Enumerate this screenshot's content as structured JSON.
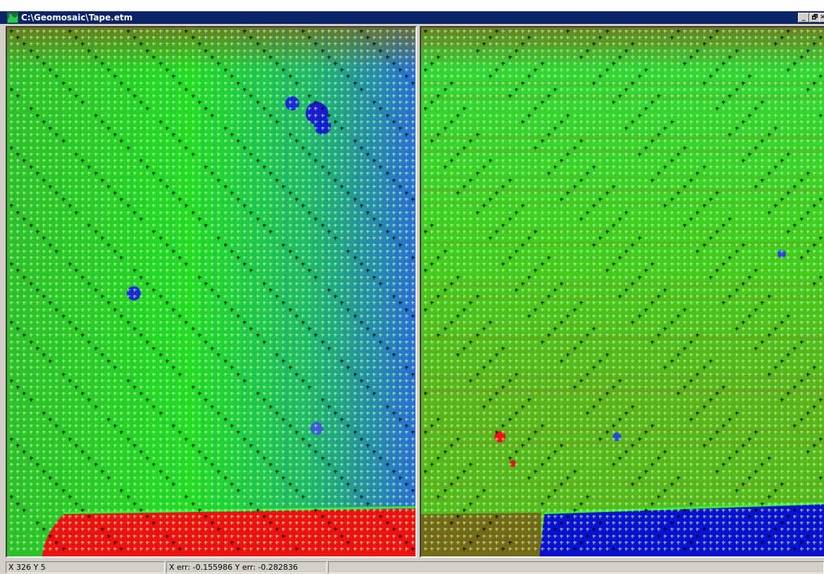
{
  "window": {
    "title": "C:\\Geomosaic\\Tape.etm",
    "icon": "geomosaic-app-icon",
    "buttons": {
      "minimize": "_",
      "restore": "🗗",
      "close": "✕"
    }
  },
  "left_pane": {
    "name": "source-image-view",
    "colors": {
      "base": "#22dd22",
      "cool": "#2a6fd6",
      "hot": "#ee1111",
      "shade": "#6a8a2a"
    },
    "grid_markers": "plus-cross-grid"
  },
  "right_pane": {
    "name": "target-image-view",
    "colors": {
      "base": "#33dd22",
      "warm": "#8a7a1a",
      "cool": "#0a1ad6",
      "hot": "#ee1111"
    },
    "grid_markers": "plus-cross-grid"
  },
  "statusbar": {
    "coords": "X 326   Y 5",
    "errors": "X err: -0.155986    Y err: -0.282836",
    "extra": ""
  }
}
